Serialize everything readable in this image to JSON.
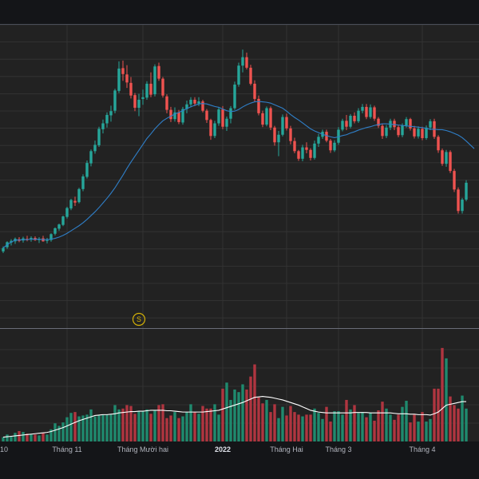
{
  "chart_data": {
    "type": "candlestick",
    "colors": {
      "background": "#141518",
      "panel": "#222222",
      "grid": "#363636",
      "up": "#26a69a",
      "down": "#ef5350",
      "volume_up": "#1f8a6e",
      "volume_down": "#b03540",
      "price_ma": "#2f7fc8",
      "volume_ma": "#ffffff",
      "axis_text": "#b2b5be",
      "marker": "#d4b106"
    },
    "x_tick_labels": [
      {
        "text": "10",
        "bar": -1
      },
      {
        "text": "Tháng 11",
        "bar": 16
      },
      {
        "text": "Tháng Mười hai",
        "bar": 35
      },
      {
        "text": "2022",
        "bar": 55,
        "bold": true
      },
      {
        "text": "Tháng Hai",
        "bar": 71
      },
      {
        "text": "Tháng 3",
        "bar": 84
      },
      {
        "text": "Tháng 4",
        "bar": 105
      }
    ],
    "dividend_marker": {
      "label": "S",
      "bar": 34
    },
    "candles": [
      [
        1.2,
        2.4,
        0.8,
        2
      ],
      [
        2.2,
        3.6,
        1.8,
        3.4
      ],
      [
        3.3,
        4.1,
        2.6,
        3.7
      ],
      [
        3.6,
        4.5,
        3,
        4.2
      ],
      [
        4.1,
        4.6,
        3.4,
        3.7
      ],
      [
        3.8,
        4.7,
        3.3,
        4.3
      ],
      [
        4.2,
        4.9,
        3.6,
        4
      ],
      [
        4.1,
        4.8,
        3.5,
        4.4
      ],
      [
        4.4,
        4.8,
        3.7,
        3.9
      ],
      [
        3.9,
        4.6,
        3.2,
        4.2
      ],
      [
        4.3,
        4.9,
        3.5,
        3.6
      ],
      [
        3.7,
        4.4,
        3.1,
        3.9
      ],
      [
        3.9,
        5.5,
        3.5,
        5.3
      ],
      [
        5.4,
        6.9,
        5,
        6.7
      ],
      [
        6.6,
        7.8,
        6.1,
        7.6
      ],
      [
        7.5,
        9.7,
        7.2,
        9.5
      ],
      [
        9.4,
        11.8,
        9,
        11.5
      ],
      [
        11.4,
        13.7,
        11,
        13.4
      ],
      [
        13.2,
        14.2,
        12,
        12.8
      ],
      [
        12.9,
        16.3,
        12.6,
        16
      ],
      [
        16,
        19.5,
        15.5,
        19
      ],
      [
        18.9,
        22.8,
        18.5,
        22.2
      ],
      [
        22.1,
        25.4,
        21.4,
        25
      ],
      [
        25,
        27.5,
        24.4,
        26.5
      ],
      [
        26.4,
        30.8,
        26,
        30.3
      ],
      [
        30.2,
        32.5,
        29.2,
        31.6
      ],
      [
        31.6,
        34.2,
        30.6,
        33.6
      ],
      [
        33.5,
        35.8,
        32,
        34.5
      ],
      [
        34.6,
        39.8,
        34,
        39.4
      ],
      [
        39.3,
        46.3,
        38.8,
        44.6
      ],
      [
        44.7,
        46.5,
        41.7,
        43.3
      ],
      [
        43.2,
        45.4,
        40,
        41.3
      ],
      [
        41.2,
        42.6,
        37.5,
        38.2
      ],
      [
        38.3,
        38.8,
        34.5,
        35.3
      ],
      [
        35.3,
        38.6,
        33.3,
        37.2
      ],
      [
        37.4,
        39.6,
        36,
        37.8
      ],
      [
        37.7,
        41.6,
        37.2,
        41
      ],
      [
        41,
        43.7,
        37.8,
        38.4
      ],
      [
        38.5,
        45.6,
        38,
        45.1
      ],
      [
        45.2,
        46,
        41.7,
        42.2
      ],
      [
        42.2,
        42.6,
        37.7,
        38.2
      ],
      [
        38,
        38.5,
        34,
        34.8
      ],
      [
        34.8,
        35.5,
        31.9,
        32.6
      ],
      [
        32.6,
        35.4,
        32,
        34.2
      ],
      [
        34.2,
        34.8,
        31.4,
        31.9
      ],
      [
        31.8,
        35.5,
        31.3,
        35
      ],
      [
        35,
        37,
        34,
        36.1
      ],
      [
        36.1,
        37.8,
        35.4,
        37.2
      ],
      [
        37.2,
        37.8,
        35.7,
        36.3
      ],
      [
        36.3,
        37.8,
        35.7,
        36.8
      ],
      [
        36.8,
        37.2,
        34.2,
        34.6
      ],
      [
        34.6,
        35,
        31.7,
        32.4
      ],
      [
        32.4,
        32.7,
        27.7,
        28.6
      ],
      [
        28.6,
        32.2,
        28.1,
        31.6
      ],
      [
        31.6,
        35.5,
        31,
        34.9
      ],
      [
        34.9,
        35.7,
        30.2,
        30.8
      ],
      [
        30.8,
        33.2,
        29.8,
        32.7
      ],
      [
        32.7,
        35.7,
        31.6,
        35.2
      ],
      [
        35.2,
        41.5,
        34.8,
        40.8
      ],
      [
        40.8,
        46,
        40.3,
        45.3
      ],
      [
        45.3,
        49.1,
        43.7,
        47.3
      ],
      [
        47.3,
        48.4,
        44.4,
        44.8
      ],
      [
        44.8,
        45.5,
        40.6,
        41
      ],
      [
        41,
        41.8,
        36.7,
        37.4
      ],
      [
        37.4,
        38.2,
        33.5,
        34
      ],
      [
        34,
        34.6,
        30.7,
        31.3
      ],
      [
        31.3,
        35.6,
        30.9,
        35.2
      ],
      [
        35.2,
        35.6,
        30,
        30.6
      ],
      [
        30.6,
        31,
        26.3,
        27.1
      ],
      [
        27.1,
        29.8,
        23.8,
        28.9
      ],
      [
        28.9,
        33.7,
        28.5,
        33.1
      ],
      [
        33.1,
        33.9,
        29.9,
        30.4
      ],
      [
        30.4,
        31,
        26.6,
        27.4
      ],
      [
        27.4,
        28.2,
        24.5,
        25
      ],
      [
        25,
        25.3,
        22.7,
        23.2
      ],
      [
        23.2,
        26.5,
        22.6,
        25.9
      ],
      [
        25.9,
        27.1,
        24.5,
        25.3
      ],
      [
        25.3,
        25.7,
        22.8,
        23.4
      ],
      [
        23.4,
        27.5,
        23,
        26.8
      ],
      [
        26.8,
        29.1,
        26,
        28.4
      ],
      [
        28.4,
        30.1,
        27.9,
        29.6
      ],
      [
        29.6,
        30.1,
        27.1,
        27.5
      ],
      [
        27.5,
        27.9,
        24.6,
        25.2
      ],
      [
        25.2,
        27.6,
        24.8,
        27
      ],
      [
        27,
        30.7,
        26.5,
        30.1
      ],
      [
        30.1,
        32.7,
        29.7,
        32.2
      ],
      [
        32.2,
        33.6,
        30,
        30.8
      ],
      [
        30.8,
        33.8,
        30.4,
        33.4
      ],
      [
        33.4,
        34.2,
        31.6,
        32.1
      ],
      [
        32.1,
        35.2,
        31.7,
        34.6
      ],
      [
        34.6,
        36.2,
        34,
        35.5
      ],
      [
        35.5,
        36.2,
        32.6,
        33.1
      ],
      [
        33.1,
        36.1,
        32.7,
        35.4
      ],
      [
        35.4,
        35.8,
        32.2,
        32.7
      ],
      [
        32.7,
        33.1,
        30.5,
        31
      ],
      [
        31,
        31.6,
        27.9,
        28.6
      ],
      [
        28.6,
        31.2,
        28.1,
        30.6
      ],
      [
        30.6,
        32.7,
        30,
        32.2
      ],
      [
        32.2,
        32.7,
        30,
        30.7
      ],
      [
        30.7,
        31.2,
        28.3,
        28.8
      ],
      [
        28.8,
        31.6,
        28.3,
        31.1
      ],
      [
        31.1,
        33.1,
        30.6,
        32.6
      ],
      [
        32.6,
        32.9,
        29.9,
        30.4
      ],
      [
        30.4,
        31,
        28,
        28.5
      ],
      [
        28.5,
        30.9,
        28,
        30.3
      ],
      [
        30.3,
        30.8,
        27.6,
        28.1
      ],
      [
        28.1,
        31.1,
        27.7,
        30.6
      ],
      [
        30.6,
        32.6,
        30,
        32.1
      ],
      [
        32.1,
        32.7,
        27.9,
        28.4
      ],
      [
        28.4,
        28.8,
        24.6,
        25.2
      ],
      [
        25.2,
        25.6,
        21.5,
        22
      ],
      [
        22,
        25.3,
        21.3,
        24.8
      ],
      [
        24.8,
        25.2,
        19.8,
        20.3
      ],
      [
        20.3,
        20.8,
        15.3,
        15.9
      ],
      [
        15.9,
        16.4,
        10.2,
        10.8
      ],
      [
        10.8,
        13.9,
        10.2,
        13.5
      ],
      [
        13.5,
        18.1,
        13.1,
        17.5
      ]
    ],
    "volume": [
      5,
      8,
      6,
      10,
      12,
      11,
      9,
      8,
      8,
      7,
      10,
      8,
      14,
      21,
      18,
      22,
      28,
      33,
      34,
      29,
      30,
      31,
      37,
      29,
      30,
      31,
      31,
      31,
      42,
      37,
      38,
      42,
      41,
      32,
      35,
      35,
      37,
      32,
      36,
      42,
      43,
      27,
      30,
      34,
      27,
      29,
      34,
      43,
      34,
      32,
      41,
      38,
      38,
      43,
      31,
      61,
      68,
      48,
      60,
      57,
      66,
      60,
      75,
      89,
      51,
      44,
      48,
      34,
      43,
      27,
      40,
      30,
      41,
      34,
      31,
      29,
      31,
      31,
      38,
      33,
      26,
      40,
      23,
      35,
      35,
      31,
      48,
      37,
      42,
      33,
      34,
      28,
      33,
      24,
      36,
      46,
      38,
      31,
      25,
      31,
      40,
      47,
      22,
      31,
      23,
      34,
      23,
      26,
      61,
      61,
      108,
      96,
      52,
      42,
      38,
      53,
      38
    ],
    "price_ma": [
      2,
      2.8,
      3.4,
      3.9,
      3.9,
      4,
      4,
      4.1,
      4.1,
      4.1,
      4,
      4,
      4.1,
      4.3,
      4.6,
      5,
      5.5,
      6.1,
      6.7,
      7.3,
      8,
      8.8,
      9.7,
      10.6,
      11.6,
      12.7,
      13.8,
      15,
      16.3,
      17.8,
      19.3,
      20.9,
      22.4,
      23.8,
      25.2,
      26.6,
      28,
      29.1,
      30.3,
      31.3,
      32.2,
      32.8,
      33.3,
      33.8,
      34.2,
      34.6,
      35.1,
      35.5,
      35.9,
      36.2,
      36.3,
      36.2,
      35.9,
      35.6,
      35.4,
      35,
      34.6,
      34.4,
      34.5,
      34.9,
      35.5,
      36,
      36.4,
      36.7,
      36.8,
      36.7,
      36.6,
      36.4,
      36,
      35.6,
      35.2,
      34.5,
      33.7,
      33,
      32.4,
      31.7,
      31,
      30.3,
      29.8,
      29.4,
      29,
      28.7,
      28.4,
      28.2,
      28.4,
      28.7,
      28.9,
      29.3,
      29.6,
      30,
      30.3,
      30.6,
      30.8,
      31.1,
      31.3,
      31.5,
      31.5,
      31.4,
      31.3,
      31.2,
      31.1,
      31,
      30.9,
      30.8,
      30.7,
      30.6,
      30.4,
      30.2,
      30.2,
      30.1,
      30.1,
      29.9,
      29.6,
      29.2,
      28.8,
      28.2,
      27.4,
      26.5,
      25.6
    ],
    "volume_ma": [
      5,
      5.5,
      6,
      6.5,
      7,
      7.5,
      8,
      8.5,
      9,
      9.5,
      10,
      10.5,
      11.5,
      13,
      14.5,
      16,
      18,
      20,
      22,
      24,
      25.5,
      27,
      28.5,
      30,
      30.5,
      31,
      31,
      31.5,
      32,
      33,
      33.5,
      34,
      34.5,
      34.5,
      35,
      35,
      35.5,
      36,
      36,
      36,
      36,
      35.5,
      35.5,
      35,
      34.5,
      34,
      34,
      34,
      34,
      34,
      34,
      34.5,
      35,
      35.5,
      36,
      37.5,
      39,
      40.5,
      42,
      43.5,
      45,
      47,
      49,
      51,
      51.5,
      52,
      51.5,
      51,
      50,
      49,
      48,
      46.5,
      45,
      43.5,
      42,
      40,
      38,
      36,
      35,
      34,
      33.5,
      33,
      33,
      33,
      33,
      33,
      33,
      33,
      33.5,
      33.5,
      33.5,
      33.5,
      33,
      33,
      33,
      33,
      33,
      33,
      32.5,
      32,
      32,
      32,
      31.5,
      31.5,
      31,
      31,
      31,
      30.5,
      32,
      34,
      38,
      42,
      43,
      44,
      45,
      46,
      46
    ]
  }
}
